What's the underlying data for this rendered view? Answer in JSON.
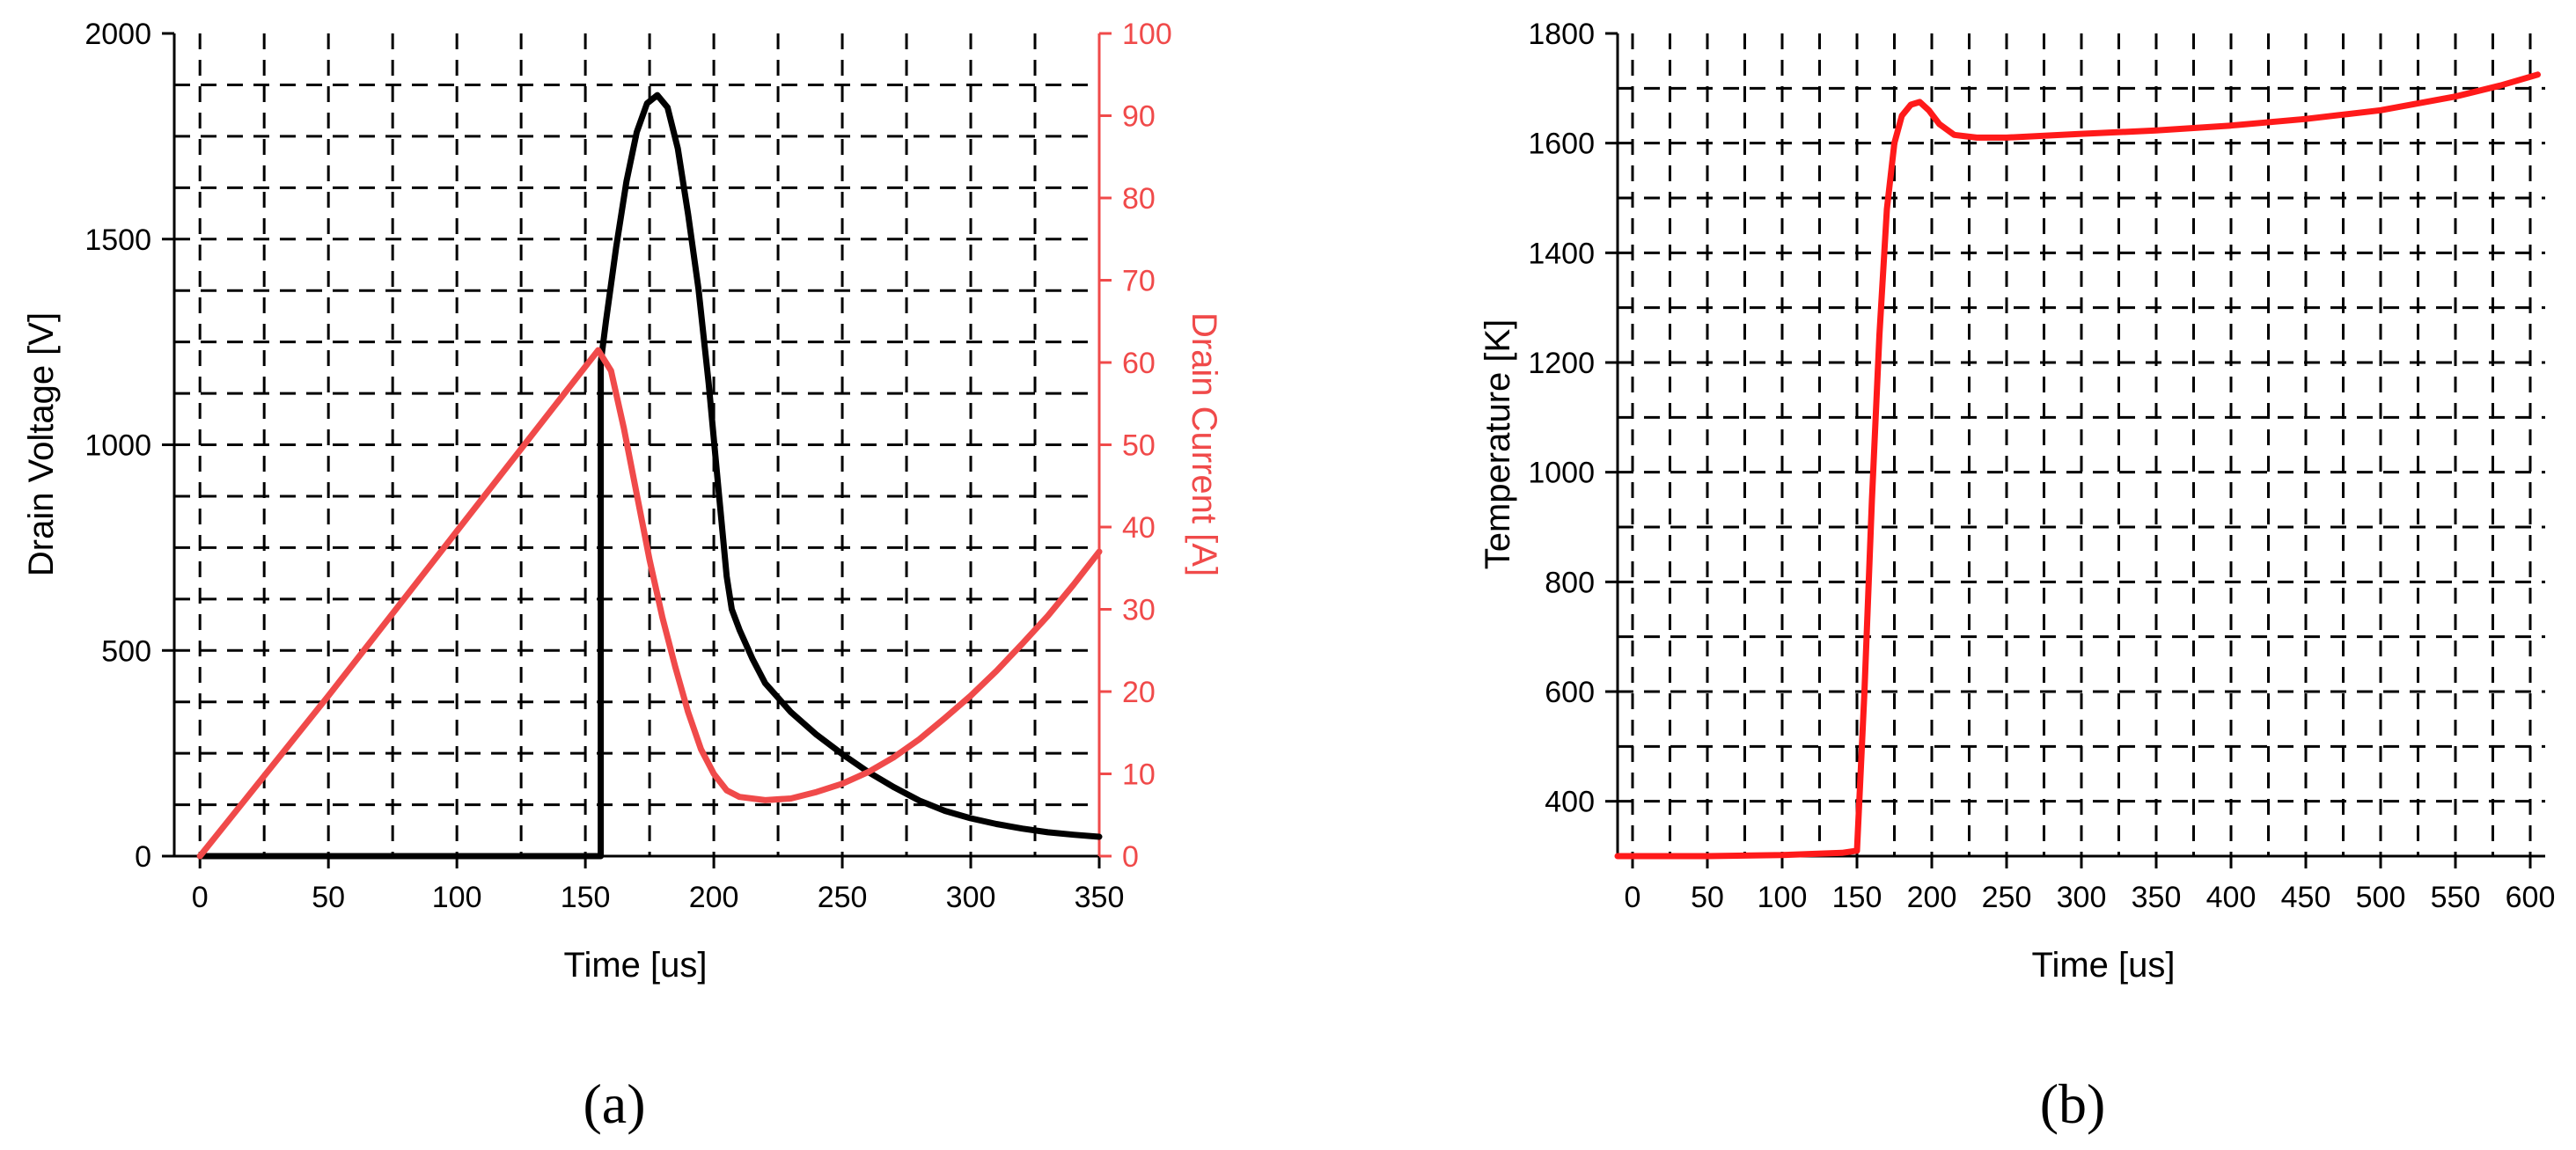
{
  "colors": {
    "voltage": "#000000",
    "current": "#f04a4a",
    "temperature": "#ff1a1a",
    "grid": "#000000"
  },
  "chart_data": [
    {
      "type": "line",
      "panel_label": "(a)",
      "xlabel": "Time [us]",
      "ylabel": "Drain Voltage [V]",
      "y2label": "Drain Current [A]",
      "xlim": [
        -10,
        350
      ],
      "ylim": [
        0,
        2000
      ],
      "y2lim": [
        0,
        100
      ],
      "xticks": [
        0,
        50,
        100,
        150,
        200,
        250,
        300,
        350
      ],
      "yticks": [
        0,
        500,
        1000,
        1500,
        2000
      ],
      "y2ticks": [
        0,
        10,
        20,
        30,
        40,
        50,
        60,
        70,
        80,
        90,
        100
      ],
      "grid": true,
      "series": [
        {
          "axis": "left",
          "color": "#000000",
          "points": [
            [
              0,
              0
            ],
            [
              50,
              0
            ],
            [
              100,
              0
            ],
            [
              150,
              0
            ],
            [
              156,
              0
            ],
            [
              156,
              0
            ],
            [
              156,
              1200
            ],
            [
              158,
              1300
            ],
            [
              162,
              1480
            ],
            [
              166,
              1640
            ],
            [
              170,
              1760
            ],
            [
              174,
              1830
            ],
            [
              178,
              1850
            ],
            [
              182,
              1820
            ],
            [
              186,
              1720
            ],
            [
              190,
              1560
            ],
            [
              194,
              1380
            ],
            [
              198,
              1150
            ],
            [
              202,
              880
            ],
            [
              205,
              680
            ],
            [
              207,
              600
            ],
            [
              210,
              550
            ],
            [
              215,
              480
            ],
            [
              220,
              420
            ],
            [
              230,
              350
            ],
            [
              240,
              295
            ],
            [
              250,
              248
            ],
            [
              260,
              205
            ],
            [
              270,
              168
            ],
            [
              280,
              135
            ],
            [
              290,
              110
            ],
            [
              300,
              92
            ],
            [
              310,
              78
            ],
            [
              320,
              67
            ],
            [
              330,
              58
            ],
            [
              340,
              52
            ],
            [
              350,
              47
            ]
          ]
        },
        {
          "axis": "right",
          "color": "#f04a4a",
          "points": [
            [
              0,
              0
            ],
            [
              50,
              19.5
            ],
            [
              100,
              39.5
            ],
            [
              155,
              61.5
            ],
            [
              160,
              59
            ],
            [
              165,
              52
            ],
            [
              170,
              44
            ],
            [
              175,
              36
            ],
            [
              180,
              29
            ],
            [
              185,
              23
            ],
            [
              190,
              17.5
            ],
            [
              195,
              13
            ],
            [
              200,
              10
            ],
            [
              205,
              8
            ],
            [
              210,
              7.2
            ],
            [
              220,
              6.8
            ],
            [
              230,
              7
            ],
            [
              240,
              7.8
            ],
            [
              250,
              8.8
            ],
            [
              260,
              10.2
            ],
            [
              270,
              12
            ],
            [
              280,
              14.2
            ],
            [
              290,
              16.8
            ],
            [
              300,
              19.5
            ],
            [
              310,
              22.5
            ],
            [
              320,
              25.8
            ],
            [
              330,
              29.2
            ],
            [
              340,
              33
            ],
            [
              350,
              37
            ]
          ]
        }
      ]
    },
    {
      "type": "line",
      "panel_label": "(b)",
      "xlabel": "Time [us]",
      "ylabel": "Temperature [K]",
      "xlim": [
        -10,
        610
      ],
      "ylim": [
        300,
        1800
      ],
      "xticks": [
        0,
        50,
        100,
        150,
        200,
        250,
        300,
        350,
        400,
        450,
        500,
        550,
        600
      ],
      "yticks": [
        400,
        600,
        800,
        1000,
        1200,
        1400,
        1600,
        1800
      ],
      "grid": true,
      "series": [
        {
          "axis": "left",
          "color": "#ff1a1a",
          "points": [
            [
              -10,
              300
            ],
            [
              50,
              300
            ],
            [
              100,
              302
            ],
            [
              140,
              306
            ],
            [
              150,
              310
            ],
            [
              155,
              600
            ],
            [
              160,
              950
            ],
            [
              165,
              1250
            ],
            [
              170,
              1480
            ],
            [
              175,
              1600
            ],
            [
              180,
              1650
            ],
            [
              186,
              1670
            ],
            [
              192,
              1675
            ],
            [
              198,
              1660
            ],
            [
              205,
              1635
            ],
            [
              215,
              1615
            ],
            [
              230,
              1610
            ],
            [
              250,
              1610
            ],
            [
              300,
              1617
            ],
            [
              350,
              1623
            ],
            [
              400,
              1632
            ],
            [
              450,
              1644
            ],
            [
              500,
              1660
            ],
            [
              550,
              1685
            ],
            [
              580,
              1705
            ],
            [
              605,
              1725
            ]
          ]
        }
      ]
    }
  ]
}
